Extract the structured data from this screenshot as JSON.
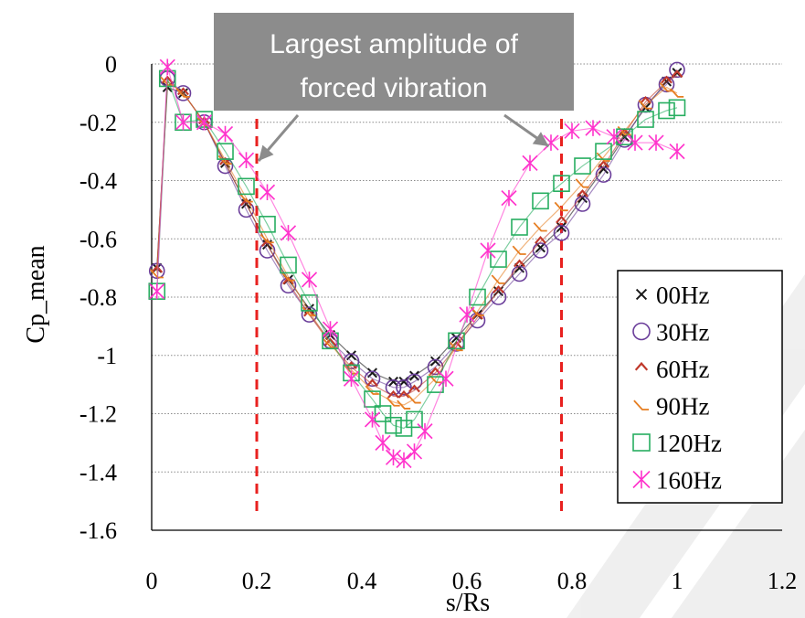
{
  "chart_data": {
    "type": "scatter",
    "xlabel": "s/Rs",
    "ylabel": "Cp_mean",
    "xlim": [
      0,
      1.2
    ],
    "ylim": [
      -1.6,
      0
    ],
    "x_ticks": [
      "0",
      "0.2",
      "0.4",
      "0.6",
      "0.8",
      "1",
      "1.2"
    ],
    "y_ticks": [
      "0",
      "-0.2",
      "-0.4",
      "-0.6",
      "-0.8",
      "-1",
      "-1.2",
      "-1.4",
      "-1.6"
    ],
    "grid": "horizontal dotted",
    "legend_position": "right",
    "annotation": {
      "text_line1": "Largest amplitude of",
      "text_line2": "forced vibration",
      "markers_x": [
        0.2,
        0.78
      ],
      "marker_color": "#e8211f",
      "box_color": "#8c8c8c"
    },
    "series": [
      {
        "name": "00Hz",
        "marker": "x",
        "color": "#1a1a1a",
        "x": [
          0.01,
          0.03,
          0.06,
          0.1,
          0.14,
          0.18,
          0.22,
          0.26,
          0.3,
          0.34,
          0.38,
          0.42,
          0.46,
          0.48,
          0.5,
          0.54,
          0.58,
          0.62,
          0.66,
          0.7,
          0.74,
          0.78,
          0.82,
          0.86,
          0.9,
          0.94,
          0.98,
          1.0
        ],
        "y": [
          -0.7,
          -0.08,
          -0.1,
          -0.2,
          -0.34,
          -0.48,
          -0.62,
          -0.74,
          -0.84,
          -0.93,
          -1.0,
          -1.06,
          -1.09,
          -1.09,
          -1.07,
          -1.02,
          -0.94,
          -0.86,
          -0.78,
          -0.7,
          -0.63,
          -0.56,
          -0.46,
          -0.36,
          -0.25,
          -0.15,
          -0.06,
          -0.03
        ]
      },
      {
        "name": "30Hz",
        "marker": "circle",
        "color": "#6a3d9a",
        "x": [
          0.01,
          0.03,
          0.06,
          0.1,
          0.14,
          0.18,
          0.22,
          0.26,
          0.3,
          0.34,
          0.38,
          0.42,
          0.46,
          0.48,
          0.5,
          0.54,
          0.58,
          0.62,
          0.66,
          0.7,
          0.74,
          0.78,
          0.82,
          0.86,
          0.9,
          0.94,
          0.98,
          1.0
        ],
        "y": [
          -0.71,
          -0.05,
          -0.1,
          -0.2,
          -0.35,
          -0.5,
          -0.64,
          -0.76,
          -0.86,
          -0.95,
          -1.02,
          -1.08,
          -1.11,
          -1.11,
          -1.09,
          -1.04,
          -0.96,
          -0.88,
          -0.8,
          -0.72,
          -0.64,
          -0.58,
          -0.48,
          -0.38,
          -0.26,
          -0.14,
          -0.07,
          -0.02
        ]
      },
      {
        "name": "60Hz",
        "marker": "chevron",
        "color": "#c0392b",
        "x": [
          0.01,
          0.03,
          0.06,
          0.1,
          0.14,
          0.18,
          0.22,
          0.26,
          0.3,
          0.34,
          0.38,
          0.42,
          0.46,
          0.48,
          0.5,
          0.54,
          0.58,
          0.62,
          0.66,
          0.7,
          0.74,
          0.78,
          0.82,
          0.86,
          0.9,
          0.94,
          0.98,
          1.0
        ],
        "y": [
          -0.71,
          -0.06,
          -0.1,
          -0.2,
          -0.34,
          -0.48,
          -0.62,
          -0.75,
          -0.86,
          -0.96,
          -1.04,
          -1.1,
          -1.14,
          -1.14,
          -1.12,
          -1.06,
          -0.97,
          -0.87,
          -0.78,
          -0.69,
          -0.61,
          -0.54,
          -0.45,
          -0.35,
          -0.24,
          -0.13,
          -0.06,
          -0.04
        ]
      },
      {
        "name": "90Hz",
        "marker": "caret",
        "color": "#e67e22",
        "x": [
          0.01,
          0.03,
          0.06,
          0.1,
          0.14,
          0.18,
          0.22,
          0.26,
          0.3,
          0.34,
          0.38,
          0.42,
          0.46,
          0.48,
          0.5,
          0.54,
          0.58,
          0.62,
          0.66,
          0.7,
          0.74,
          0.78,
          0.82,
          0.86,
          0.9,
          0.94,
          0.98,
          1.0
        ],
        "y": [
          -0.72,
          -0.06,
          -0.1,
          -0.2,
          -0.33,
          -0.46,
          -0.6,
          -0.73,
          -0.85,
          -0.96,
          -1.05,
          -1.12,
          -1.16,
          -1.17,
          -1.15,
          -1.08,
          -0.97,
          -0.85,
          -0.74,
          -0.64,
          -0.56,
          -0.49,
          -0.41,
          -0.32,
          -0.23,
          -0.14,
          -0.08,
          -0.1
        ]
      },
      {
        "name": "120Hz",
        "marker": "square",
        "color": "#27ae60",
        "x": [
          0.01,
          0.03,
          0.06,
          0.1,
          0.14,
          0.18,
          0.22,
          0.26,
          0.3,
          0.34,
          0.38,
          0.42,
          0.44,
          0.46,
          0.48,
          0.5,
          0.54,
          0.58,
          0.62,
          0.66,
          0.7,
          0.74,
          0.78,
          0.82,
          0.86,
          0.9,
          0.94,
          0.98,
          1.0
        ],
        "y": [
          -0.78,
          -0.05,
          -0.2,
          -0.19,
          -0.3,
          -0.42,
          -0.55,
          -0.69,
          -0.82,
          -0.95,
          -1.06,
          -1.15,
          -1.2,
          -1.24,
          -1.25,
          -1.22,
          -1.1,
          -0.95,
          -0.8,
          -0.67,
          -0.56,
          -0.47,
          -0.41,
          -0.35,
          -0.3,
          -0.25,
          -0.19,
          -0.16,
          -0.15
        ]
      },
      {
        "name": "160Hz",
        "marker": "asterisk",
        "color": "#ff33cc",
        "x": [
          0.01,
          0.03,
          0.06,
          0.1,
          0.14,
          0.18,
          0.22,
          0.26,
          0.3,
          0.34,
          0.38,
          0.42,
          0.44,
          0.46,
          0.48,
          0.5,
          0.52,
          0.56,
          0.6,
          0.64,
          0.68,
          0.72,
          0.76,
          0.8,
          0.84,
          0.88,
          0.92,
          0.96,
          1.0
        ],
        "y": [
          -0.78,
          -0.01,
          -0.2,
          -0.2,
          -0.24,
          -0.33,
          -0.44,
          -0.58,
          -0.74,
          -0.91,
          -1.08,
          -1.22,
          -1.3,
          -1.35,
          -1.36,
          -1.33,
          -1.26,
          -1.08,
          -0.86,
          -0.64,
          -0.46,
          -0.34,
          -0.27,
          -0.23,
          -0.22,
          -0.25,
          -0.27,
          -0.27,
          -0.3
        ]
      }
    ]
  }
}
